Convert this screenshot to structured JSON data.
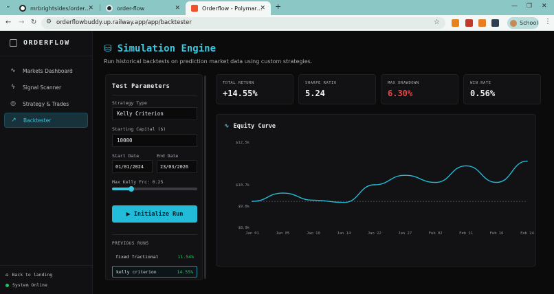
{
  "browser": {
    "tabs": [
      {
        "label": "mrbrightsides/orderflow: A live",
        "active": false
      },
      {
        "label": "order-flow",
        "active": false
      },
      {
        "label": "Orderflow - Polymarket Intellige",
        "active": true
      }
    ],
    "new_tab": "+",
    "url": "orderflowbuddy.up.railway.app/app/backtester",
    "profile_label": "School"
  },
  "sidebar": {
    "brand": "ORDERFLOW",
    "items": [
      {
        "label": "Markets Dashboard",
        "icon": "activity-icon"
      },
      {
        "label": "Signal Scanner",
        "icon": "zap-icon"
      },
      {
        "label": "Strategy & Trades",
        "icon": "target-icon"
      },
      {
        "label": "Backtester",
        "icon": "line-chart-icon",
        "active": true
      }
    ],
    "back_label": "Back to landing",
    "status_label": "System Online"
  },
  "header": {
    "title": "Simulation Engine",
    "subtitle": "Run historical backtests on prediction market data using custom strategies."
  },
  "params": {
    "title": "Test Parameters",
    "strategy_type_label": "Strategy Type",
    "strategy_type_value": "Kelly Criterion",
    "capital_label": "Starting Capital ($)",
    "capital_value": "10000",
    "start_label": "Start Date",
    "start_value": "01/01/2024",
    "end_label": "End Date",
    "end_value": "23/03/2026",
    "kelly_label": "Max Kelly Frc: 0.25",
    "kelly_value": 0.25,
    "run_button": "Initialize Run",
    "previous_label": "PREVIOUS RUNS",
    "previous_runs": [
      {
        "name": "fixed fractional",
        "value": "11.54%"
      },
      {
        "name": "kelly criterion",
        "value": "14.55%",
        "selected": true
      }
    ]
  },
  "stats": [
    {
      "label": "TOTAL RETURN",
      "value": "+14.55%",
      "color": "#eef1f3"
    },
    {
      "label": "SHARPE RATIO",
      "value": "5.24",
      "color": "#eef1f3"
    },
    {
      "label": "MAX DRAWDOWN",
      "value": "6.30%",
      "color": "#ef4444"
    },
    {
      "label": "WIN RATE",
      "value": "0.56%",
      "color": "#eef1f3"
    }
  ],
  "chart_data": {
    "type": "line",
    "title": "Equity Curve",
    "x": [
      "Jan 01",
      "Jan 05",
      "Jan 10",
      "Jan 14",
      "Jan 22",
      "Jan 27",
      "Feb 02",
      "Feb 11",
      "Feb 16",
      "Feb 24"
    ],
    "y_ticks": [
      "$12.5k",
      "$10.7k",
      "$9.8k",
      "$8.9k"
    ],
    "ylim": [
      8.9,
      12.5
    ],
    "baseline": 10.0,
    "series": [
      {
        "values": [
          10.0,
          10.35,
          10.05,
          9.95,
          10.7,
          11.1,
          10.8,
          11.5,
          10.8,
          11.7
        ],
        "color": "#22bcd8"
      }
    ],
    "grid": false
  },
  "colors": {
    "accent": "#38c6df",
    "positive": "#22c55e",
    "negative": "#ef4444"
  }
}
